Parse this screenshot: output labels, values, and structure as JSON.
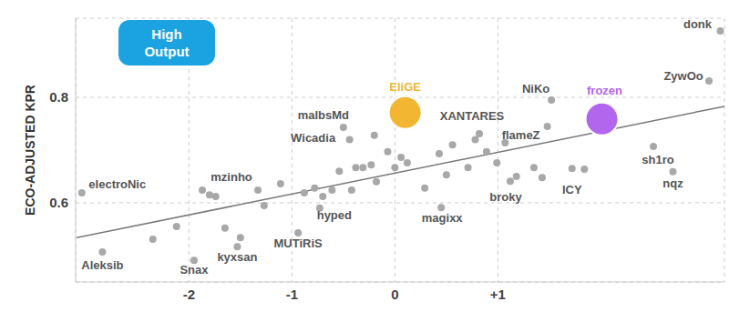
{
  "chart_data": {
    "type": "scatter",
    "ylabel": "ECO-ADJUSTED KPR",
    "annotations": [
      "High Output"
    ],
    "xlim": [
      -3.1,
      3.2
    ],
    "ylim": [
      0.45,
      0.95
    ],
    "xticks": [
      -2,
      -1,
      0,
      {
        "value": 1,
        "label": "+1"
      }
    ],
    "yticks": [
      0.6,
      0.8
    ],
    "grid": true,
    "color": "#a8a8a8",
    "trend_line": {
      "x": [
        -3.09,
        3.2
      ],
      "y": [
        0.534,
        0.783
      ],
      "color": "#777777"
    },
    "labeled_points": [
      {
        "label": "donk",
        "x": 3.16,
        "y": 0.926
      },
      {
        "label": "ZywOo",
        "x": 3.05,
        "y": 0.831
      },
      {
        "label": "NiKo",
        "x": 1.52,
        "y": 0.795
      },
      {
        "label": "frozen",
        "x": 2.01,
        "y": 0.759,
        "color": "#b266ee"
      },
      {
        "label": "EliGE",
        "x": 0.1,
        "y": 0.771,
        "color": "#f2b632"
      },
      {
        "label": "XANTARES",
        "x": 0.82,
        "y": 0.731
      },
      {
        "label": "flameZ",
        "x": 1.48,
        "y": 0.745
      },
      {
        "label": "sh1ro",
        "x": 2.51,
        "y": 0.707
      },
      {
        "label": "nqz",
        "x": 2.7,
        "y": 0.659
      },
      {
        "label": "ICY",
        "x": 1.72,
        "y": 0.665
      },
      {
        "label": "broky",
        "x": 1.12,
        "y": 0.641
      },
      {
        "label": "magixx",
        "x": 0.45,
        "y": 0.591
      },
      {
        "label": "hyped",
        "x": -0.73,
        "y": 0.59
      },
      {
        "label": "MUTiRiS",
        "x": -0.94,
        "y": 0.543
      },
      {
        "label": "kyxsan",
        "x": -1.53,
        "y": 0.517
      },
      {
        "label": "Snax",
        "x": -1.95,
        "y": 0.491
      },
      {
        "label": "Aleksib",
        "x": -2.84,
        "y": 0.507
      },
      {
        "label": "electroNic",
        "x": -3.04,
        "y": 0.619
      },
      {
        "label": "mzinho",
        "x": -1.33,
        "y": 0.624
      },
      {
        "label": "Wicadia",
        "x": -0.44,
        "y": 0.72
      },
      {
        "label": "malbsMd",
        "x": -0.5,
        "y": 0.743
      }
    ],
    "other_points": {
      "x": [
        -2.35,
        -2.12,
        -1.87,
        -1.8,
        -1.74,
        -1.65,
        -1.5,
        -1.27,
        -1.11,
        -0.88,
        -0.78,
        -0.7,
        -0.61,
        -0.54,
        -0.38,
        -0.31,
        -0.23,
        -0.2,
        -0.07,
        0,
        0.06,
        0.12,
        0.29,
        0.43,
        0.5,
        0.56,
        0.71,
        0.78,
        0.89,
        0.99,
        1.07,
        1.35,
        1.43,
        1.84,
        1.18,
        -0.18,
        -0.42
      ],
      "y": [
        0.531,
        0.555,
        0.624,
        0.615,
        0.612,
        0.552,
        0.534,
        0.595,
        0.636,
        0.619,
        0.628,
        0.612,
        0.624,
        0.66,
        0.667,
        0.667,
        0.672,
        0.728,
        0.697,
        0.667,
        0.686,
        0.676,
        0.628,
        0.693,
        0.653,
        0.71,
        0.667,
        0.72,
        0.697,
        0.676,
        0.714,
        0.667,
        0.648,
        0.664,
        0.65,
        0.64,
        0.624
      ]
    }
  }
}
